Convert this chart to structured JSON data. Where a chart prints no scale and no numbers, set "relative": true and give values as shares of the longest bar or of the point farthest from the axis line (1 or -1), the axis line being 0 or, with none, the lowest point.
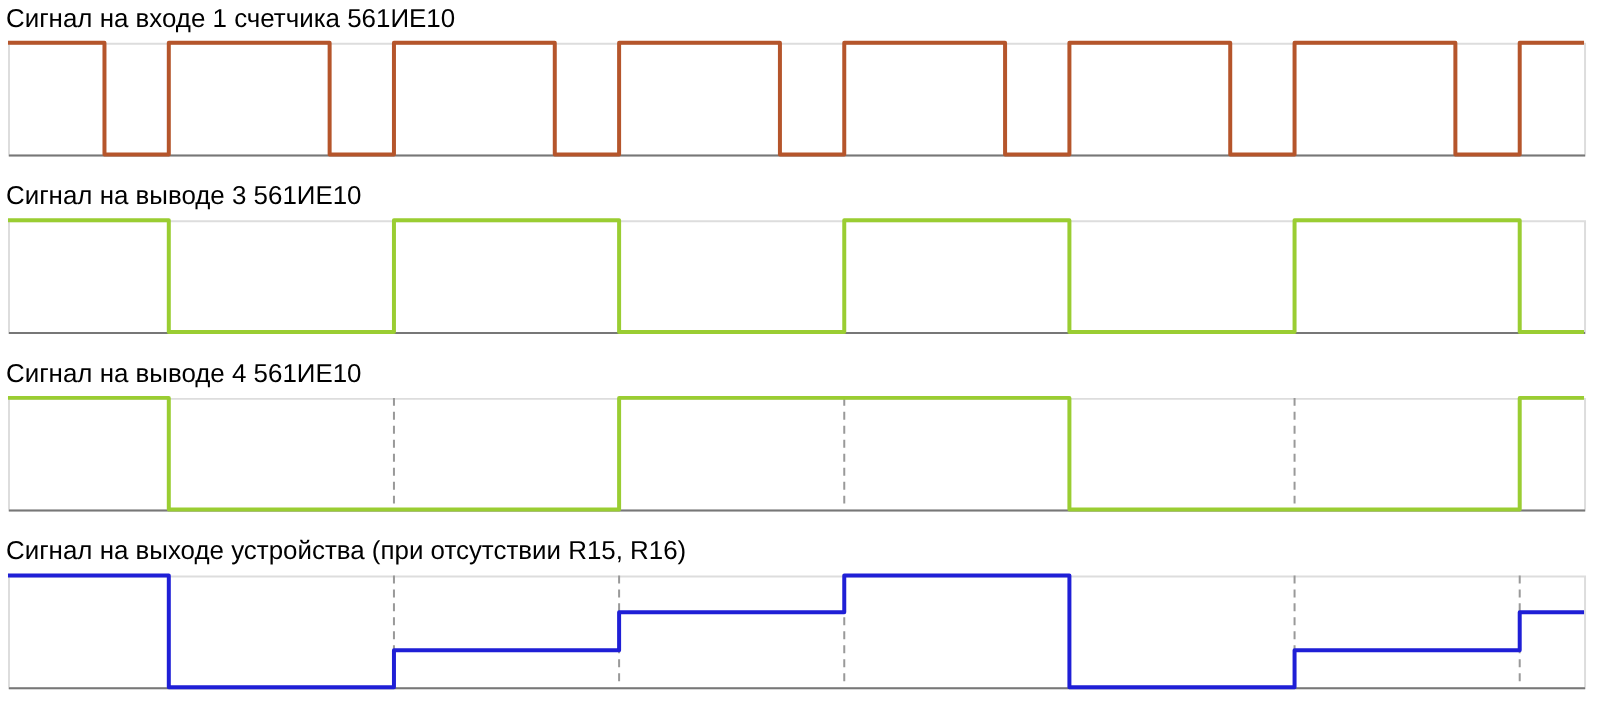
{
  "chart_data": [
    {
      "type": "step",
      "title": "Сигнал на входе 1 счетчика 561ИЕ10",
      "relative": true,
      "tick_labels": false,
      "grid": false,
      "categories": [
        null,
        null,
        null,
        null,
        null,
        null,
        null,
        null,
        null,
        null,
        null,
        null,
        null,
        null,
        null,
        null,
        null,
        null,
        null,
        null,
        null,
        null,
        null,
        null,
        null,
        null,
        null,
        null,
        null,
        null,
        null,
        null,
        null,
        null,
        null,
        null,
        null,
        null,
        null,
        null,
        null,
        null,
        null,
        null,
        null,
        null,
        null,
        null,
        null,
        null
      ],
      "series": [
        {
          "color": "#b5552b",
          "values": [
            1,
            1,
            1,
            0,
            0,
            1,
            1,
            1,
            1,
            1,
            0,
            0,
            1,
            1,
            1,
            1,
            1,
            0,
            0,
            1,
            1,
            1,
            1,
            1,
            0,
            0,
            1,
            1,
            1,
            1,
            1,
            0,
            0,
            1,
            1,
            1,
            1,
            1,
            0,
            0,
            1,
            1,
            1,
            1,
            1,
            0,
            0,
            1,
            1,
            1
          ]
        }
      ]
    },
    {
      "type": "step",
      "title": "Сигнал на выводе 3 561ИЕ10",
      "relative": true,
      "tick_labels": false,
      "grid": "x",
      "categories": [
        null,
        null,
        null,
        null,
        null,
        null,
        null,
        null,
        null,
        null,
        null,
        null,
        null,
        null,
        null,
        null,
        null,
        null,
        null,
        null,
        null,
        null,
        null,
        null,
        null,
        null,
        null,
        null,
        null,
        null,
        null,
        null,
        null,
        null,
        null,
        null,
        null,
        null,
        null,
        null,
        null,
        null,
        null,
        null,
        null,
        null,
        null,
        null,
        null,
        null
      ],
      "series": [
        {
          "color": "#9acd32",
          "values": [
            1,
            1,
            1,
            1,
            1,
            0,
            0,
            0,
            0,
            0,
            0,
            0,
            1,
            1,
            1,
            1,
            1,
            1,
            1,
            0,
            0,
            0,
            0,
            0,
            0,
            0,
            1,
            1,
            1,
            1,
            1,
            1,
            1,
            0,
            0,
            0,
            0,
            0,
            0,
            0,
            1,
            1,
            1,
            1,
            1,
            1,
            1,
            0,
            0,
            0
          ]
        }
      ]
    },
    {
      "type": "step",
      "title": "Сигнал на выводе 4 561ИЕ10",
      "relative": true,
      "tick_labels": false,
      "grid": "x",
      "categories": [
        null,
        null,
        null,
        null,
        null,
        null,
        null,
        null,
        null,
        null,
        null,
        null,
        null,
        null,
        null,
        null,
        null,
        null,
        null,
        null,
        null,
        null,
        null,
        null,
        null,
        null,
        null,
        null,
        null,
        null,
        null,
        null,
        null,
        null,
        null,
        null,
        null,
        null,
        null,
        null,
        null,
        null,
        null,
        null,
        null,
        null,
        null,
        null,
        null,
        null
      ],
      "series": [
        {
          "color": "#9acd32",
          "values": [
            1,
            1,
            1,
            1,
            1,
            0,
            0,
            0,
            0,
            0,
            0,
            0,
            0,
            0,
            0,
            0,
            0,
            0,
            0,
            1,
            1,
            1,
            1,
            1,
            1,
            1,
            1,
            1,
            1,
            1,
            1,
            1,
            1,
            0,
            0,
            0,
            0,
            0,
            0,
            0,
            0,
            0,
            0,
            0,
            0,
            0,
            0,
            1,
            1,
            1
          ]
        }
      ]
    },
    {
      "type": "step",
      "title": "Сигнал на выходе устройства (при отсутствии R15, R16)",
      "relative": true,
      "tick_labels": false,
      "grid": "x",
      "categories": [
        null,
        null,
        null,
        null,
        null,
        null,
        null,
        null,
        null,
        null,
        null,
        null,
        null,
        null,
        null,
        null,
        null,
        null,
        null,
        null,
        null,
        null,
        null,
        null,
        null,
        null,
        null,
        null,
        null,
        null,
        null,
        null,
        null,
        null,
        null,
        null,
        null,
        null,
        null,
        null,
        null,
        null,
        null,
        null,
        null,
        null,
        null,
        null,
        null,
        null
      ],
      "series": [
        {
          "color": "#1f1fd6",
          "values": [
            1,
            1,
            1,
            1,
            1,
            0,
            0,
            0,
            0,
            0,
            0,
            0,
            0.33,
            0.33,
            0.33,
            0.33,
            0.33,
            0.33,
            0.33,
            0.67,
            0.67,
            0.67,
            0.67,
            0.67,
            0.67,
            0.67,
            1,
            1,
            1,
            1,
            1,
            1,
            1,
            0,
            0,
            0,
            0,
            0,
            0,
            0,
            0.33,
            0.33,
            0.33,
            0.33,
            0.33,
            0.33,
            0.33,
            0.67,
            0.67,
            0.67
          ]
        }
      ]
    }
  ]
}
